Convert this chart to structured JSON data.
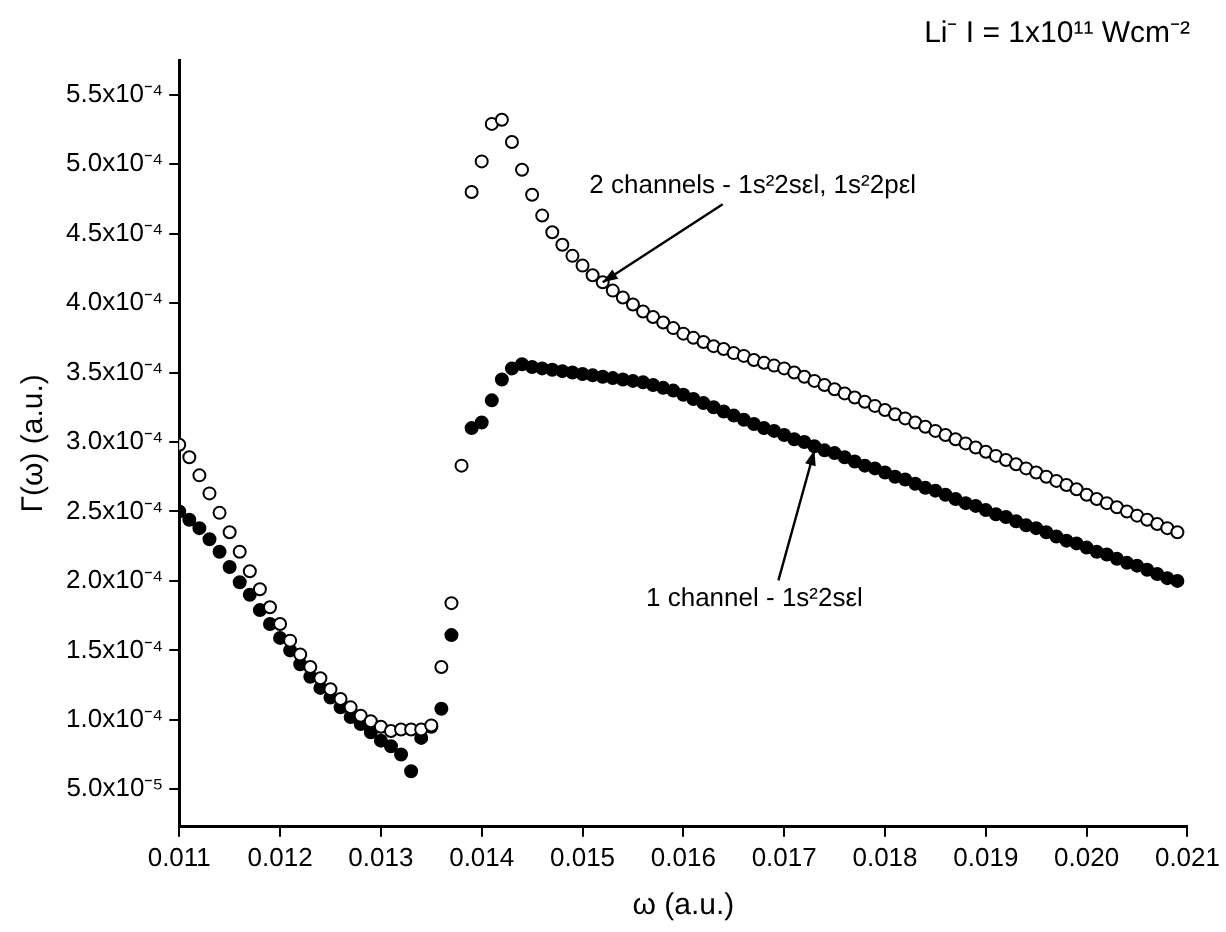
{
  "chart_data": {
    "type": "scatter",
    "title": "Li⁻ I = 1x10¹¹ Wcm⁻²",
    "xlabel": "ω (a.u.)",
    "ylabel": "Γ(ω) (a.u.)",
    "x": [
      0.011,
      0.0111,
      0.0112,
      0.0113,
      0.0114,
      0.0115,
      0.0116,
      0.0117,
      0.0118,
      0.0119,
      0.012,
      0.0121,
      0.0122,
      0.0123,
      0.0124,
      0.0125,
      0.0126,
      0.0127,
      0.0128,
      0.0129,
      0.013,
      0.0131,
      0.0132,
      0.0133,
      0.0134,
      0.0135,
      0.0136,
      0.0137,
      0.0138,
      0.0139,
      0.014,
      0.0141,
      0.0142,
      0.0143,
      0.0144,
      0.0145,
      0.0146,
      0.0147,
      0.0148,
      0.0149,
      0.015,
      0.0151,
      0.0152,
      0.0153,
      0.0154,
      0.0155,
      0.0156,
      0.0157,
      0.0158,
      0.0159,
      0.016,
      0.0161,
      0.0162,
      0.0163,
      0.0164,
      0.0165,
      0.0166,
      0.0167,
      0.0168,
      0.0169,
      0.017,
      0.0171,
      0.0172,
      0.0173,
      0.0174,
      0.0175,
      0.0176,
      0.0177,
      0.0178,
      0.0179,
      0.018,
      0.0181,
      0.0182,
      0.0183,
      0.0184,
      0.0185,
      0.0186,
      0.0187,
      0.0188,
      0.0189,
      0.019,
      0.0191,
      0.0192,
      0.0193,
      0.0194,
      0.0195,
      0.0196,
      0.0197,
      0.0198,
      0.0199,
      0.02,
      0.0201,
      0.0202,
      0.0203,
      0.0204,
      0.0205,
      0.0206,
      0.0207,
      0.0208,
      0.0209
    ],
    "series": [
      {
        "color": "#000000",
        "values": [
          0.000298,
          0.000289,
          0.000276,
          0.000263,
          0.000249,
          0.000235,
          0.000221,
          0.000207,
          0.000194,
          0.000181,
          0.000169,
          0.000157,
          0.000147,
          0.000138,
          0.00013,
          0.000122,
          0.000115,
          0.000109,
          0.000103,
          9.9e-05,
          9.5e-05,
          9.2e-05,
          9.3e-05,
          9.3e-05,
          9.3e-05,
          9.6e-05,
          0.000138,
          0.000184,
          0.000283,
          0.00048,
          0.000502,
          0.000529,
          0.000532,
          0.000516,
          0.000496,
          0.000478,
          0.000463,
          0.000451,
          0.000442,
          0.000434,
          0.000427,
          0.00042,
          0.000415,
          0.000409,
          0.000404,
          0.000399,
          0.000394,
          0.00039,
          0.000386,
          0.000382,
          0.000378,
          0.000375,
          0.000372,
          0.000369,
          0.000367,
          0.000364,
          0.000362,
          0.000359,
          0.000357,
          0.000355,
          0.000353,
          0.00035,
          0.000347,
          0.000344,
          0.000341,
          0.000338,
          0.000335,
          0.000332,
          0.000329,
          0.000326,
          0.000323,
          0.00032,
          0.000317,
          0.000314,
          0.000311,
          0.000308,
          0.000305,
          0.000302,
          0.000299,
          0.000296,
          0.000293,
          0.00029,
          0.000287,
          0.000284,
          0.000281,
          0.000278,
          0.000275,
          0.000272,
          0.000269,
          0.000266,
          0.000262,
          0.000259,
          0.000256,
          0.000253,
          0.00025,
          0.000247,
          0.000244,
          0.000241,
          0.000238,
          0.000235
        ]
      },
      {
        "color": "#000000",
        "values": [
          0.00025,
          0.000244,
          0.000238,
          0.00023,
          0.000221,
          0.00021,
          0.000199,
          0.00019,
          0.000179,
          0.000169,
          0.000159,
          0.00015,
          0.00014,
          0.000131,
          0.000123,
          0.000116,
          0.000109,
          0.000102,
          9.7e-05,
          9.1e-05,
          8.5e-05,
          8.1e-05,
          7.5e-05,
          6.3e-05,
          8.7e-05,
          9.5e-05,
          0.000108,
          0.000161,
          null,
          0.00031,
          0.000314,
          0.00033,
          0.000345,
          0.000353,
          0.000356,
          0.000354,
          0.000353,
          0.000352,
          0.000351,
          0.00035,
          0.000349,
          0.000348,
          0.000347,
          0.000346,
          0.000345,
          0.000344,
          0.000343,
          0.000341,
          0.000339,
          0.000337,
          0.000334,
          0.000331,
          0.000328,
          0.000325,
          0.000322,
          0.000319,
          0.000316,
          0.000313,
          0.00031,
          0.000308,
          0.000305,
          0.000302,
          0.0003,
          0.000297,
          0.000294,
          0.000292,
          0.000289,
          0.000286,
          0.000283,
          0.000281,
          0.000278,
          0.000275,
          0.000273,
          0.00027,
          0.000267,
          0.000265,
          0.000262,
          0.000259,
          0.000256,
          0.000254,
          0.000251,
          0.000248,
          0.000246,
          0.000243,
          0.00024,
          0.000238,
          0.000235,
          0.000232,
          0.000229,
          0.000227,
          0.000224,
          0.000221,
          0.000219,
          0.000216,
          0.000213,
          0.000211,
          0.000208,
          0.000205,
          0.000202,
          0.0002
        ]
      }
    ],
    "xlim": [
      0.011,
      0.021
    ],
    "xticks": [
      0.011,
      0.012,
      0.013,
      0.014,
      0.015,
      0.016,
      0.017,
      0.018,
      0.019,
      {
        "value": 0.02,
        "label": "0.020"
      },
      0.021
    ],
    "ylim": [
      2.3e-05,
      0.000575
    ],
    "yticks": [
      {
        "value": 5e-05,
        "label": "5.0x10⁻⁵"
      },
      {
        "value": 0.0001,
        "label": "1.0x10⁻⁴"
      },
      {
        "value": 0.00015,
        "label": "1.5x10⁻⁴"
      },
      {
        "value": 0.0002,
        "label": "2.0x10⁻⁴"
      },
      {
        "value": 0.00025,
        "label": "2.5x10⁻⁴"
      },
      {
        "value": 0.0003,
        "label": "3.0x10⁻⁴"
      },
      {
        "value": 0.00035,
        "label": "3.5x10⁻⁴"
      },
      {
        "value": 0.0004,
        "label": "4.0x10⁻⁴"
      },
      {
        "value": 0.00045,
        "label": "4.5x10⁻⁴"
      },
      {
        "value": 0.0005,
        "label": "5.0x10⁻⁴"
      },
      {
        "value": 0.00055,
        "label": "5.5x10⁻⁴"
      }
    ],
    "annotations": [
      {
        "text": "2 channels - 1s²2sεl, 1s²2pεl",
        "x": 0.0152,
        "y": 0.000415
      },
      {
        "text": "1 channel - 1s²2sεl",
        "x": 0.0173,
        "y": 0.000294
      }
    ],
    "marker": "circle",
    "grid": false,
    "legend": false
  }
}
